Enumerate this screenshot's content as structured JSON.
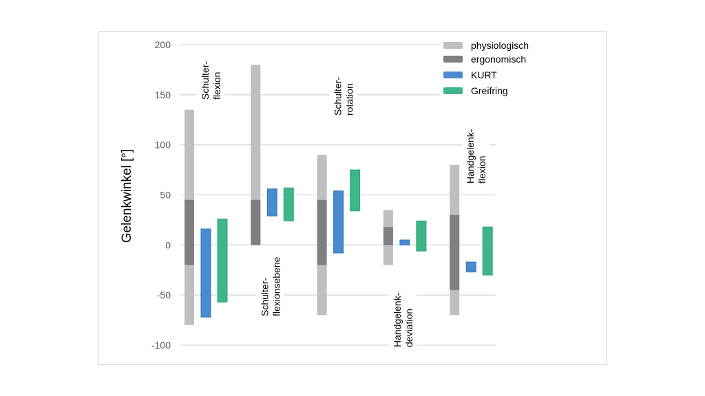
{
  "chart_data": {
    "type": "bar",
    "subtype": "floating-range",
    "ylabel": "Gelenkwinkel [°]",
    "xlabel": "",
    "ylim": [
      -100,
      200
    ],
    "yticks": [
      200,
      150,
      100,
      50,
      0,
      -50,
      -100
    ],
    "grid": true,
    "legend_position": "top-right",
    "categories": [
      {
        "lines": [
          "Schulter-",
          "flexion"
        ],
        "label_pos": "top"
      },
      {
        "lines": [
          "Schulter-",
          "flexionsebene"
        ],
        "label_pos": "bottom"
      },
      {
        "lines": [
          "Schulter-",
          "rotation"
        ],
        "label_pos": "top"
      },
      {
        "lines": [
          "Handgelenk-",
          "deviation"
        ],
        "label_pos": "bottom"
      },
      {
        "lines": [
          "Handgelenk-",
          "flexion"
        ],
        "label_pos": "top"
      }
    ],
    "series": [
      {
        "name": "physiologisch",
        "color": "#bfbfbf",
        "ranges": [
          [
            -80,
            135
          ],
          [
            0,
            180
          ],
          [
            -70,
            90
          ],
          [
            -20,
            35
          ],
          [
            -70,
            80
          ]
        ]
      },
      {
        "name": "ergonomisch",
        "color": "#7f7f7f",
        "ranges": [
          [
            -20,
            45
          ],
          [
            0,
            45
          ],
          [
            -20,
            45
          ],
          [
            0,
            18
          ],
          [
            -45,
            30
          ]
        ]
      },
      {
        "name": "KURT",
        "color": "#4a8bd0",
        "ranges": [
          [
            -72,
            16
          ],
          [
            29,
            56
          ],
          [
            -8,
            54
          ],
          [
            0,
            5
          ],
          [
            -27,
            -17
          ]
        ]
      },
      {
        "name": "Greifring",
        "color": "#3fb58a",
        "ranges": [
          [
            -57,
            26
          ],
          [
            24,
            57
          ],
          [
            34,
            75
          ],
          [
            -6,
            24
          ],
          [
            -30,
            18
          ]
        ]
      }
    ]
  }
}
